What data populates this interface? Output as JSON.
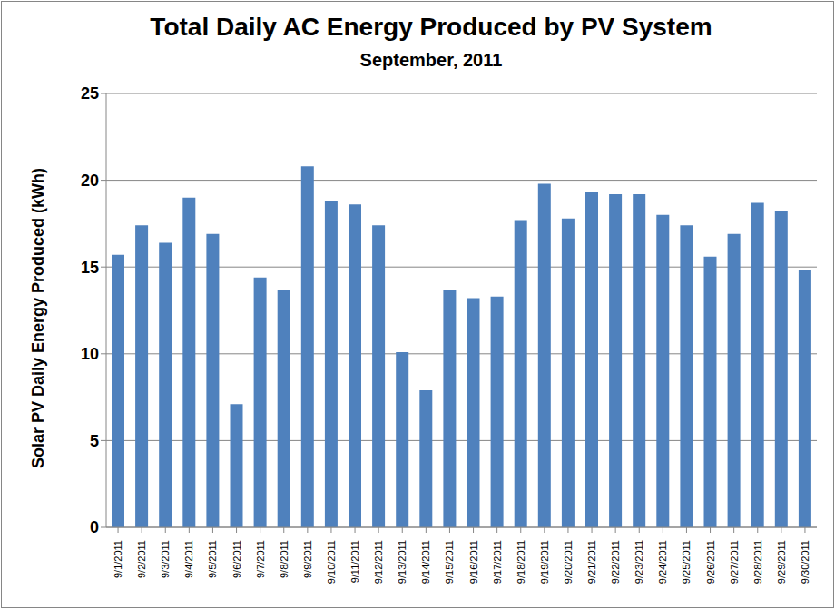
{
  "chart_data": {
    "type": "bar",
    "title": "Total Daily AC Energy Produced by PV System",
    "subtitle": "September, 2011",
    "y_label": "Solar PV Daily Energy Produced (kWh)",
    "categories": [
      "9/1/2011",
      "9/2/2011",
      "9/3/2011",
      "9/4/2011",
      "9/5/2011",
      "9/6/2011",
      "9/7/2011",
      "9/8/2011",
      "9/9/2011",
      "9/10/2011",
      "9/11/2011",
      "9/12/2011",
      "9/13/2011",
      "9/14/2011",
      "9/15/2011",
      "9/16/2011",
      "9/17/2011",
      "9/18/2011",
      "9/19/2011",
      "9/20/2011",
      "9/21/2011",
      "9/22/2011",
      "9/23/2011",
      "9/24/2011",
      "9/25/2011",
      "9/26/2011",
      "9/27/2011",
      "9/28/2011",
      "9/29/2011",
      "9/30/2011"
    ],
    "values": [
      15.7,
      17.4,
      16.4,
      19.0,
      16.9,
      7.1,
      14.4,
      13.7,
      20.8,
      18.8,
      18.6,
      17.4,
      10.1,
      7.9,
      13.7,
      13.2,
      13.3,
      17.7,
      19.8,
      17.8,
      19.3,
      19.2,
      19.2,
      18.0,
      17.4,
      15.6,
      16.9,
      18.7,
      18.2,
      14.8
    ],
    "color": "#4f81bd",
    "ylim": [
      0,
      25
    ],
    "yticks": [
      0,
      5,
      10,
      15,
      20,
      25
    ],
    "grid": true
  }
}
